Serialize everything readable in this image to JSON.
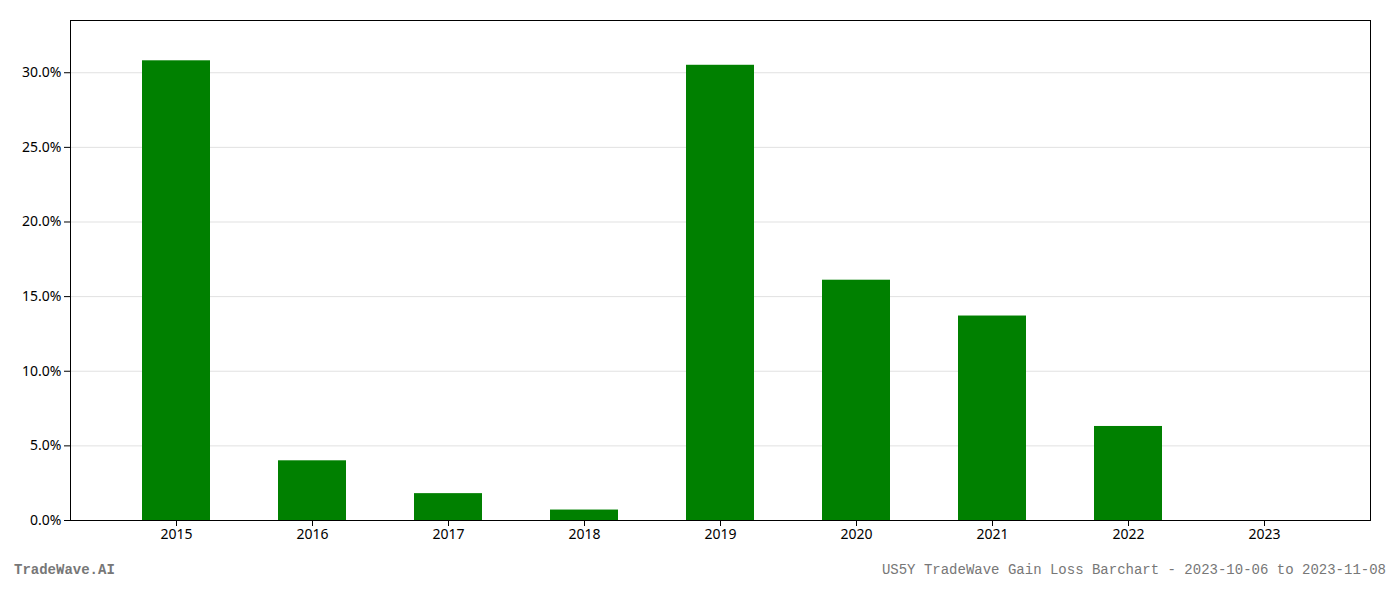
{
  "chart_data": {
    "type": "bar",
    "categories": [
      "2015",
      "2016",
      "2017",
      "2018",
      "2019",
      "2020",
      "2021",
      "2022",
      "2023"
    ],
    "values": [
      0.308,
      0.04,
      0.018,
      0.007,
      0.305,
      0.161,
      0.137,
      0.063,
      0.0
    ],
    "color": "#008000",
    "ylim": [
      0,
      0.335
    ],
    "yticks": [
      {
        "value": 0.0,
        "label": "0.0%"
      },
      {
        "value": 0.05,
        "label": "5.0%"
      },
      {
        "value": 0.1,
        "label": "10.0%"
      },
      {
        "value": 0.15,
        "label": "15.0%"
      },
      {
        "value": 0.2,
        "label": "20.0%"
      },
      {
        "value": 0.25,
        "label": "25.0%"
      },
      {
        "value": 0.3,
        "label": "30.0%"
      }
    ],
    "grid": true,
    "annotations": [
      "TradeWave.AI",
      "US5Y TradeWave Gain Loss Barchart - 2023-10-06 to 2023-11-08"
    ]
  }
}
